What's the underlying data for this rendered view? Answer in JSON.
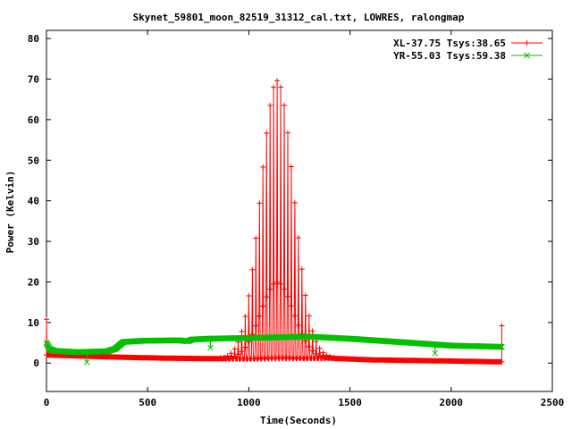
{
  "chart_data": {
    "type": "line",
    "title": "Skynet_59801_moon_82519_31312_cal.txt, LOWRES, ralongmap",
    "xlabel": "Time(Seconds)",
    "ylabel": "Power (Kelvin)",
    "xlim": [
      0,
      2500
    ],
    "ylim": [
      -7,
      82
    ],
    "x_ticks": [
      0,
      500,
      1000,
      1500,
      2000,
      2500
    ],
    "y_ticks": [
      0,
      10,
      20,
      30,
      40,
      50,
      60,
      70,
      80
    ],
    "grid": false,
    "legend_position": "top-right",
    "series": [
      {
        "name": "XL-37.75 Tsys:38.65",
        "color": "#ff0000",
        "marker": "plus",
        "baseline": [
          [
            0,
            2.0
          ],
          [
            200,
            1.7
          ],
          [
            400,
            1.4
          ],
          [
            600,
            1.2
          ],
          [
            800,
            1.1
          ],
          [
            1000,
            1.0
          ],
          [
            1400,
            1.2
          ],
          [
            1600,
            0.8
          ],
          [
            2000,
            0.5
          ],
          [
            2250,
            0.3
          ]
        ],
        "scan_center": 1140,
        "scan_spacing": 17.5,
        "scan_range": [
          850,
          1420
        ],
        "peak_value": 68.5,
        "peak_width": 115,
        "outliers": [
          [
            0,
            10.8
          ],
          [
            2250,
            9.2
          ]
        ]
      },
      {
        "name": "YR-55.03 Tsys:59.38",
        "color": "#00c000",
        "marker": "x",
        "baseline": [
          [
            0,
            5.0
          ],
          [
            15,
            3.5
          ],
          [
            40,
            3.0
          ],
          [
            150,
            2.7
          ],
          [
            300,
            2.9
          ],
          [
            340,
            3.5
          ],
          [
            380,
            5.2
          ],
          [
            480,
            5.5
          ],
          [
            650,
            5.6
          ],
          [
            700,
            5.4
          ],
          [
            720,
            5.8
          ],
          [
            800,
            6.0
          ],
          [
            1300,
            6.5
          ],
          [
            1500,
            6.0
          ],
          [
            1800,
            5.0
          ],
          [
            2000,
            4.3
          ],
          [
            2250,
            4.0
          ]
        ],
        "outliers": [
          [
            200,
            0.2
          ],
          [
            810,
            3.8
          ],
          [
            1920,
            2.4
          ]
        ]
      }
    ]
  }
}
